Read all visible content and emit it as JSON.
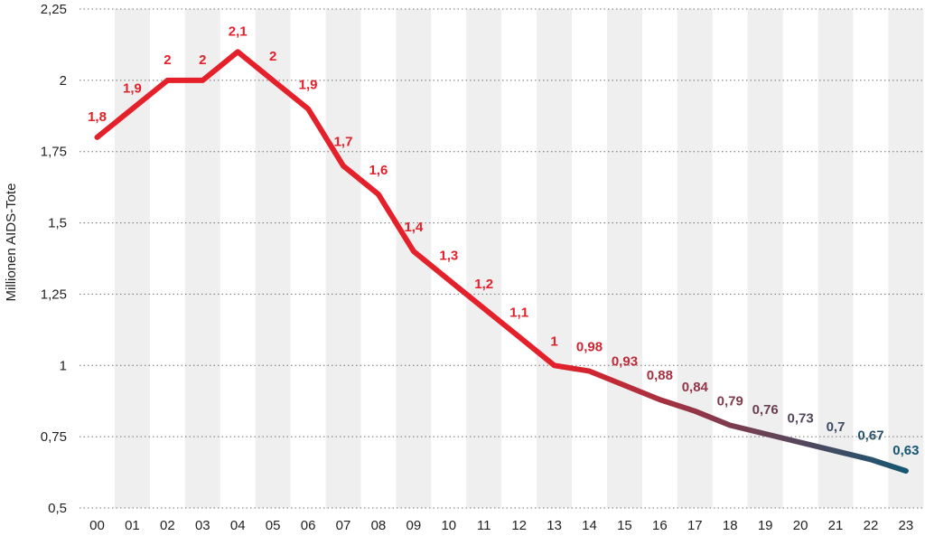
{
  "chart_data": {
    "type": "line",
    "title": "",
    "xlabel": "",
    "ylabel": "Millionen AIDS-Tote",
    "ylim": [
      0.5,
      2.25
    ],
    "yticks": [
      0.5,
      0.75,
      1,
      1.25,
      1.5,
      1.75,
      2,
      2.25
    ],
    "ytick_labels": [
      "0,5",
      "0,75",
      "1",
      "1,25",
      "1,5",
      "1,75",
      "2",
      "2,25"
    ],
    "grid": "horizontal-dotted",
    "alternating_column_shading": true,
    "categories": [
      "00",
      "01",
      "02",
      "03",
      "04",
      "05",
      "06",
      "07",
      "08",
      "09",
      "10",
      "11",
      "12",
      "13",
      "14",
      "15",
      "16",
      "17",
      "18",
      "19",
      "20",
      "21",
      "22",
      "23"
    ],
    "series": [
      {
        "name": "Millionen AIDS-Tote",
        "values": [
          1.8,
          1.9,
          2,
          2,
          2.1,
          2,
          1.9,
          1.7,
          1.6,
          1.4,
          1.3,
          1.2,
          1.1,
          1,
          0.98,
          0.93,
          0.88,
          0.84,
          0.79,
          0.76,
          0.73,
          0.7,
          0.67,
          0.63
        ],
        "labels": [
          "1,8",
          "1,9",
          "2",
          "2",
          "2,1",
          "2",
          "1,9",
          "1,7",
          "1,6",
          "1,4",
          "1,3",
          "1,2",
          "1,1",
          "1",
          "0,98",
          "0,93",
          "0,88",
          "0,84",
          "0,79",
          "0,76",
          "0,73",
          "0,7",
          "0,67",
          "0,63"
        ]
      }
    ],
    "colors": {
      "line_start": "#e4202a",
      "line_end": "#135873",
      "shade": "#efefef",
      "grid": "#6f6f6f",
      "text": "#222222"
    }
  }
}
